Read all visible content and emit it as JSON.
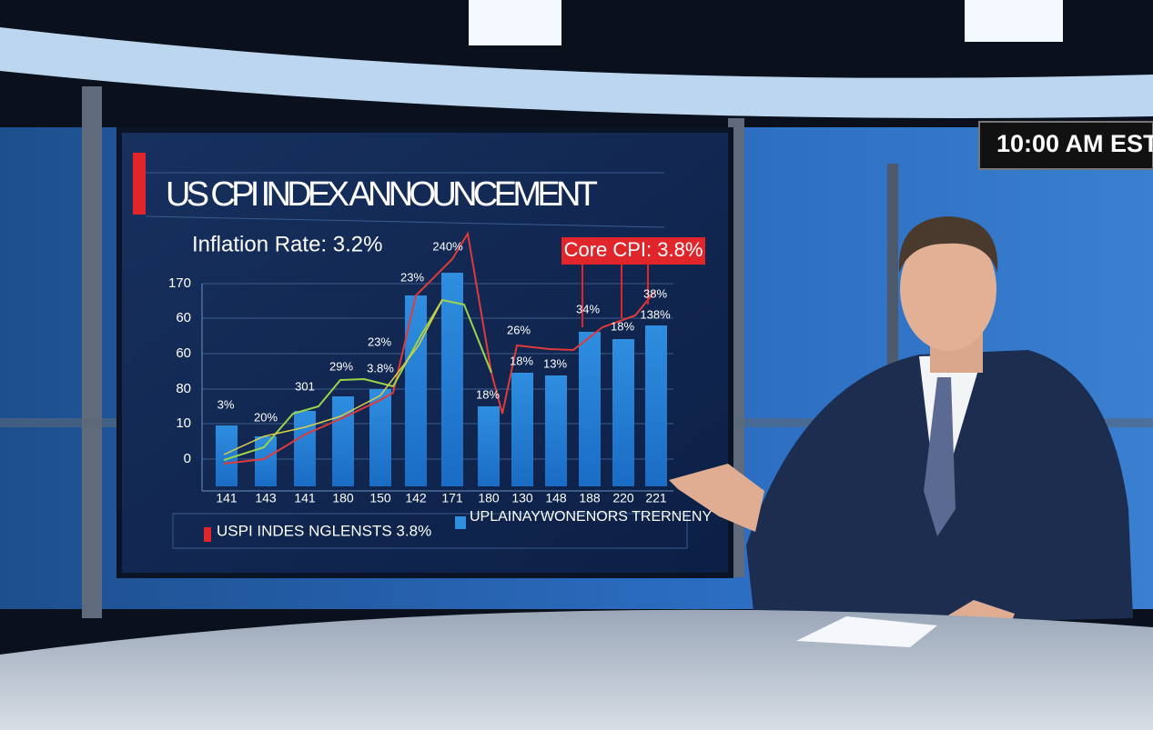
{
  "clock": "10:00 AM EST",
  "screen": {
    "title": "US CPI INDEX ANNOUNCEMENT",
    "subtitle": "Inflation Rate: 3.2%",
    "callout": "Core CPI: 3.8%",
    "y_labels": [
      "170",
      "60",
      "60",
      "80",
      "10",
      "0"
    ],
    "x_labels": [
      "141",
      "143",
      "141",
      "180",
      "150",
      "142",
      "171",
      "180",
      "130",
      "148",
      "188",
      "220",
      "221"
    ],
    "bar_labels": [
      "3%",
      "20%",
      "301",
      "29%",
      "23%",
      "3.8%",
      "23%",
      "240%",
      "18%",
      "26%",
      "18%",
      "13%",
      "34%",
      "18%",
      "38%",
      "138%"
    ],
    "legend": [
      "USPI INDES NGLENSTS 3.8%",
      "UPLAINAYWONENORS TRERNENY"
    ]
  }
}
